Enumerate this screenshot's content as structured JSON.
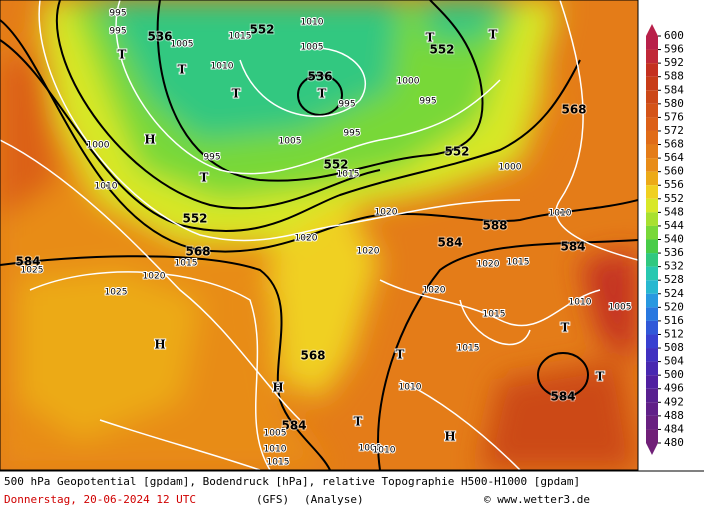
{
  "caption": {
    "line1": "500 hPa Geopotential [gpdam], Bodendruck [hPa], relative Topographie H500-H1000 [gpdam]",
    "date": "Donnerstag, 20-06-2024  12 UTC",
    "model": "(GFS)",
    "run": "(Analyse)",
    "source": "© www.wetter3.de"
  },
  "colorbar": {
    "ticks": [
      600,
      596,
      592,
      588,
      584,
      580,
      576,
      572,
      568,
      564,
      560,
      556,
      552,
      548,
      544,
      540,
      536,
      532,
      528,
      524,
      520,
      516,
      512,
      508,
      504,
      500,
      496,
      492,
      488,
      484,
      480
    ],
    "colors": [
      "#b8204a",
      "#c02838",
      "#c43020",
      "#c83c18",
      "#cc4818",
      "#d45418",
      "#dc6018",
      "#e06c18",
      "#e47c18",
      "#e88c18",
      "#ecaa18",
      "#f0d020",
      "#d8e828",
      "#a8e030",
      "#78d838",
      "#48cc48",
      "#30c880",
      "#28c8b0",
      "#28b8d0",
      "#2898e0",
      "#2878e0",
      "#3058d8",
      "#3840d0",
      "#4030c0",
      "#4828b0",
      "#5020a0",
      "#582090",
      "#602088",
      "#682080",
      "#702078"
    ]
  },
  "map": {
    "geopotential_labels": [
      536,
      552,
      552,
      536,
      568,
      552,
      552,
      552,
      568,
      588,
      584,
      584,
      584,
      568,
      584,
      584
    ],
    "isobar_labels": [
      995,
      995,
      1005,
      1010,
      1015,
      1010,
      1005,
      1000,
      995,
      995,
      995,
      995,
      1005,
      1000,
      1000,
      1010,
      1015,
      1020,
      1020,
      1025,
      1020,
      1020,
      1015,
      1010,
      1015,
      1025,
      1020,
      1015,
      1010,
      1015,
      1010,
      1000,
      1005,
      1010,
      1015,
      1020,
      1010,
      1005
    ],
    "pressure_centers": [
      "T",
      "T",
      "T",
      "T",
      "T",
      "H",
      "T",
      "H",
      "H",
      "T",
      "T",
      "T",
      "H",
      "T",
      "T"
    ]
  }
}
